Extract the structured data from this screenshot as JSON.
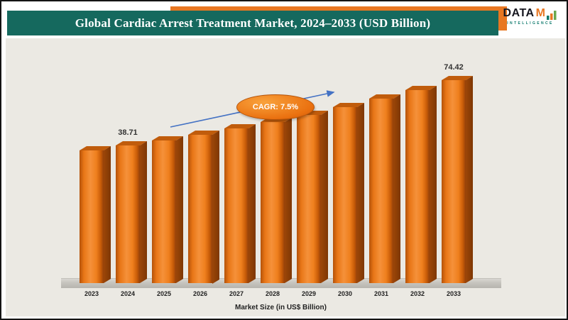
{
  "header": {
    "title": "Global Cardiac Arrest Treatment Market, 2024–2033 (USD Billion)"
  },
  "logo": {
    "text_primary": "DATA",
    "text_accent": "M",
    "subtitle": "INTELLIGENCE"
  },
  "annotation": {
    "cagr_label": "CAGR: 7.5%"
  },
  "chart_data": {
    "type": "bar",
    "title": "Global Cardiac Arrest Treatment Market, 2024–2033 (USD Billion)",
    "xlabel": "Market Size (in US$ Billion)",
    "ylabel": "",
    "categories": [
      "2023",
      "2024",
      "2025",
      "2026",
      "2027",
      "2028",
      "2029",
      "2030",
      "2031",
      "2032",
      "2033"
    ],
    "values": [
      36.01,
      38.71,
      41.61,
      44.73,
      48.09,
      51.7,
      55.57,
      59.74,
      64.22,
      69.04,
      74.42
    ],
    "value_labels": [
      "",
      "38.71",
      "",
      "",
      "",
      "",
      "",
      "",
      "",
      "",
      "74.42"
    ],
    "annotation": "CAGR: 7.5%",
    "cagr_percent": 7.5,
    "bar_color": "#e87a1f",
    "bar_side_color": "#8a3d06",
    "background_color": "#ebe9e3",
    "banner_color": "#15695e",
    "accent_color": "#e87722",
    "arrow_color": "#4472c4",
    "grid": false,
    "legend": false
  }
}
